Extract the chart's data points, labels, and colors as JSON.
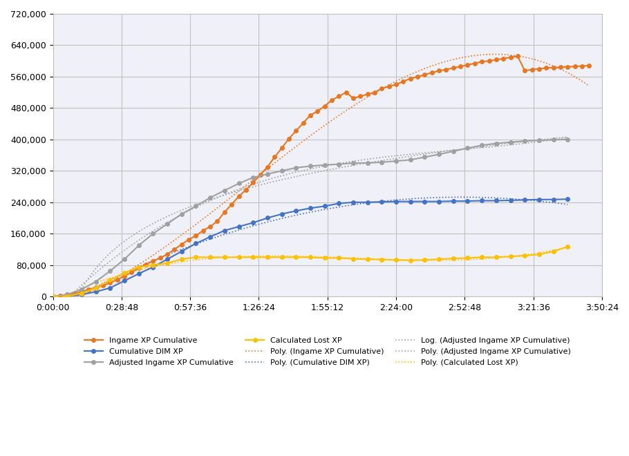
{
  "title": "",
  "bg_color": "#ffffff",
  "grid_color": "#c0c0c0",
  "ylim": [
    0,
    720000
  ],
  "yticks": [
    0,
    80000,
    160000,
    240000,
    320000,
    400000,
    480000,
    560000,
    640000,
    720000
  ],
  "xlim_seconds": [
    0,
    13824
  ],
  "xtick_seconds": [
    0,
    1728,
    3456,
    5184,
    6912,
    8640,
    10368,
    12096,
    13824
  ],
  "xtick_labels": [
    "0:00:00",
    "0:28:48",
    "0:57:36",
    "1:26:24",
    "1:55:12",
    "2:24:00",
    "2:52:48",
    "3:21:36",
    "3:50:24"
  ],
  "series": {
    "ingame": {
      "color": "#E87722",
      "marker": "o",
      "markersize": 4,
      "linewidth": 1.5,
      "label": "Ingame XP Cumulative"
    },
    "dim": {
      "color": "#4472C4",
      "marker": "o",
      "markersize": 4,
      "linewidth": 1.5,
      "label": "Cumulative DIM XP"
    },
    "adjusted": {
      "color": "#A0A0A0",
      "marker": "o",
      "markersize": 4,
      "linewidth": 1.5,
      "label": "Adjusted Ingame XP Cumulative"
    },
    "lost": {
      "color": "#FFC000",
      "marker": "o",
      "markersize": 4,
      "linewidth": 1.5,
      "label": "Calculated Lost XP"
    }
  },
  "trendlines": {
    "ingame_poly": {
      "color": "#E87722",
      "linestyle": "dotted",
      "linewidth": 1.2,
      "label": "Poly. (Ingame XP Cumulative)"
    },
    "dim_poly": {
      "color": "#4472C4",
      "linestyle": "dotted",
      "linewidth": 1.2,
      "label": "Poly. (Cumulative DIM XP)"
    },
    "adjusted_log": {
      "color": "#A0A0A0",
      "linestyle": "dotted",
      "linewidth": 1.2,
      "label": "Log. (Adjusted Ingame XP Cumulative)"
    },
    "adjusted_poly": {
      "color": "#A0A0A0",
      "linestyle": "dotted",
      "linewidth": 1.2,
      "label": "Poly. (Adjusted Ingame XP Cumulative)"
    },
    "lost_poly": {
      "color": "#FFC000",
      "linestyle": "dotted",
      "linewidth": 1.2,
      "label": "Poly. (Calculated Lost XP)"
    }
  },
  "ingame_x": [
    0,
    180,
    360,
    540,
    720,
    900,
    1080,
    1260,
    1440,
    1620,
    1800,
    1980,
    2160,
    2340,
    2520,
    2700,
    2880,
    3060,
    3240,
    3420,
    3600,
    3780,
    3960,
    4140,
    4320,
    4500,
    4680,
    4860,
    5040,
    5220,
    5400,
    5580,
    5760,
    5940,
    6120,
    6300,
    6480,
    6660,
    6840,
    7020,
    7200,
    7380,
    7560,
    7740,
    7920,
    8100,
    8280,
    8460,
    8640,
    8820,
    9000,
    9180,
    9360,
    9540,
    9720,
    9900,
    10080,
    10260,
    10440,
    10620,
    10800,
    10980,
    11160,
    11340,
    11520,
    11700,
    11880,
    12060,
    12240,
    12420,
    12600,
    12780,
    12960,
    13140,
    13320,
    13500
  ],
  "ingame_y": [
    0,
    2000,
    5000,
    8000,
    12000,
    18000,
    23000,
    28000,
    35000,
    43000,
    52000,
    62000,
    72000,
    82000,
    90000,
    98000,
    108000,
    120000,
    133000,
    145000,
    155000,
    168000,
    178000,
    192000,
    215000,
    235000,
    255000,
    272000,
    290000,
    310000,
    330000,
    355000,
    378000,
    402000,
    422000,
    442000,
    462000,
    472000,
    485000,
    500000,
    510000,
    520000,
    505000,
    510000,
    515000,
    520000,
    530000,
    535000,
    540000,
    548000,
    555000,
    560000,
    565000,
    570000,
    575000,
    578000,
    582000,
    586000,
    590000,
    594000,
    598000,
    600000,
    603000,
    606000,
    609000,
    612000,
    575000,
    578000,
    580000,
    582000,
    583000,
    584000,
    585000,
    586000,
    587000,
    588000
  ],
  "dim_x": [
    0,
    360,
    720,
    1080,
    1440,
    1800,
    2160,
    2520,
    2880,
    3240,
    3600,
    3960,
    4320,
    4680,
    5040,
    5400,
    5760,
    6120,
    6480,
    6840,
    7200,
    7560,
    7920,
    8280,
    8640,
    9000,
    9360,
    9720,
    10080,
    10440,
    10800,
    11160,
    11520,
    11880,
    12240,
    12600,
    12960
  ],
  "dim_y": [
    0,
    1000,
    5000,
    12000,
    22000,
    40000,
    58000,
    75000,
    95000,
    115000,
    135000,
    152000,
    168000,
    178000,
    188000,
    200000,
    210000,
    218000,
    225000,
    230000,
    237000,
    240000,
    240000,
    241000,
    242000,
    242000,
    242000,
    242000,
    243000,
    243000,
    244000,
    244000,
    245000,
    246000,
    247000,
    247000,
    248000
  ],
  "adjusted_x": [
    0,
    360,
    720,
    1080,
    1440,
    1800,
    2160,
    2520,
    2880,
    3240,
    3600,
    3960,
    4320,
    4680,
    5040,
    5400,
    5760,
    6120,
    6480,
    6840,
    7200,
    7560,
    7920,
    8280,
    8640,
    9000,
    9360,
    9720,
    10080,
    10440,
    10800,
    11160,
    11520,
    11880,
    12240,
    12600,
    12960
  ],
  "adjusted_y": [
    0,
    5000,
    18000,
    38000,
    65000,
    95000,
    130000,
    160000,
    185000,
    210000,
    230000,
    252000,
    270000,
    288000,
    303000,
    312000,
    320000,
    328000,
    332000,
    335000,
    337000,
    340000,
    340000,
    342000,
    345000,
    348000,
    355000,
    362000,
    370000,
    378000,
    385000,
    390000,
    393000,
    396000,
    398000,
    399000,
    400000
  ],
  "lost_x": [
    0,
    360,
    720,
    1080,
    1440,
    1800,
    2160,
    2520,
    2880,
    3240,
    3600,
    3960,
    4320,
    4680,
    5040,
    5400,
    5760,
    6120,
    6480,
    6840,
    7200,
    7560,
    7920,
    8280,
    8640,
    9000,
    9360,
    9720,
    10080,
    10440,
    10800,
    11160,
    11520,
    11880,
    12240,
    12600,
    12960
  ],
  "lost_y": [
    0,
    1000,
    8000,
    22000,
    42000,
    60000,
    75000,
    80000,
    85000,
    95000,
    100000,
    100000,
    100000,
    100000,
    100000,
    100000,
    100000,
    100000,
    100000,
    98000,
    98000,
    96000,
    95000,
    94000,
    93000,
    92000,
    93000,
    95000,
    97000,
    98000,
    100000,
    100000,
    102000,
    104000,
    107000,
    115000,
    127000
  ]
}
